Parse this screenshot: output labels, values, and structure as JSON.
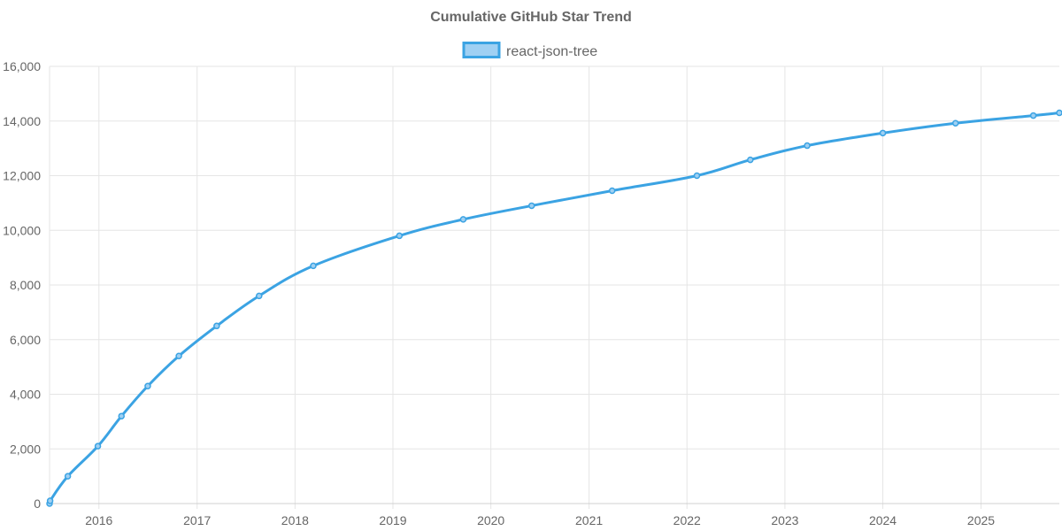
{
  "chart_data": {
    "type": "line",
    "title": "Cumulative GitHub Star Trend",
    "xlabel": "",
    "ylabel": "",
    "x_axis": {
      "type": "date",
      "min": "2015-07-01",
      "max": "2025-10-20",
      "tick_labels": [
        "2016",
        "2017",
        "2018",
        "2019",
        "2020",
        "2021",
        "2022",
        "2023",
        "2024",
        "2025"
      ]
    },
    "y_axis": {
      "min": 0,
      "max": 16000,
      "step": 2000,
      "tick_labels": [
        "0",
        "2,000",
        "4,000",
        "6,000",
        "8,000",
        "10,000",
        "12,000",
        "14,000",
        "16,000"
      ]
    },
    "grid": true,
    "legend_position": "top-center",
    "colors": {
      "line": "#3ba3e3",
      "fill": "#9fd0f3"
    },
    "series": [
      {
        "name": "react-json-tree",
        "points": [
          {
            "x": "2015-07-01",
            "y": 0
          },
          {
            "x": "2015-07-03",
            "y": 100
          },
          {
            "x": "2015-09-07",
            "y": 1000
          },
          {
            "x": "2015-12-28",
            "y": 2100
          },
          {
            "x": "2016-03-25",
            "y": 3200
          },
          {
            "x": "2016-07-01",
            "y": 4300
          },
          {
            "x": "2016-10-25",
            "y": 5400
          },
          {
            "x": "2017-03-15",
            "y": 6500
          },
          {
            "x": "2017-08-20",
            "y": 7600
          },
          {
            "x": "2018-03-10",
            "y": 8700
          },
          {
            "x": "2019-01-25",
            "y": 9800
          },
          {
            "x": "2019-09-20",
            "y": 10400
          },
          {
            "x": "2020-06-01",
            "y": 10900
          },
          {
            "x": "2021-03-28",
            "y": 11450
          },
          {
            "x": "2022-02-07",
            "y": 12000
          },
          {
            "x": "2022-08-25",
            "y": 12580
          },
          {
            "x": "2023-03-25",
            "y": 13100
          },
          {
            "x": "2024-01-01",
            "y": 13560
          },
          {
            "x": "2024-09-28",
            "y": 13920
          },
          {
            "x": "2025-07-15",
            "y": 14200
          },
          {
            "x": "2025-10-20",
            "y": 14300
          }
        ]
      }
    ]
  }
}
